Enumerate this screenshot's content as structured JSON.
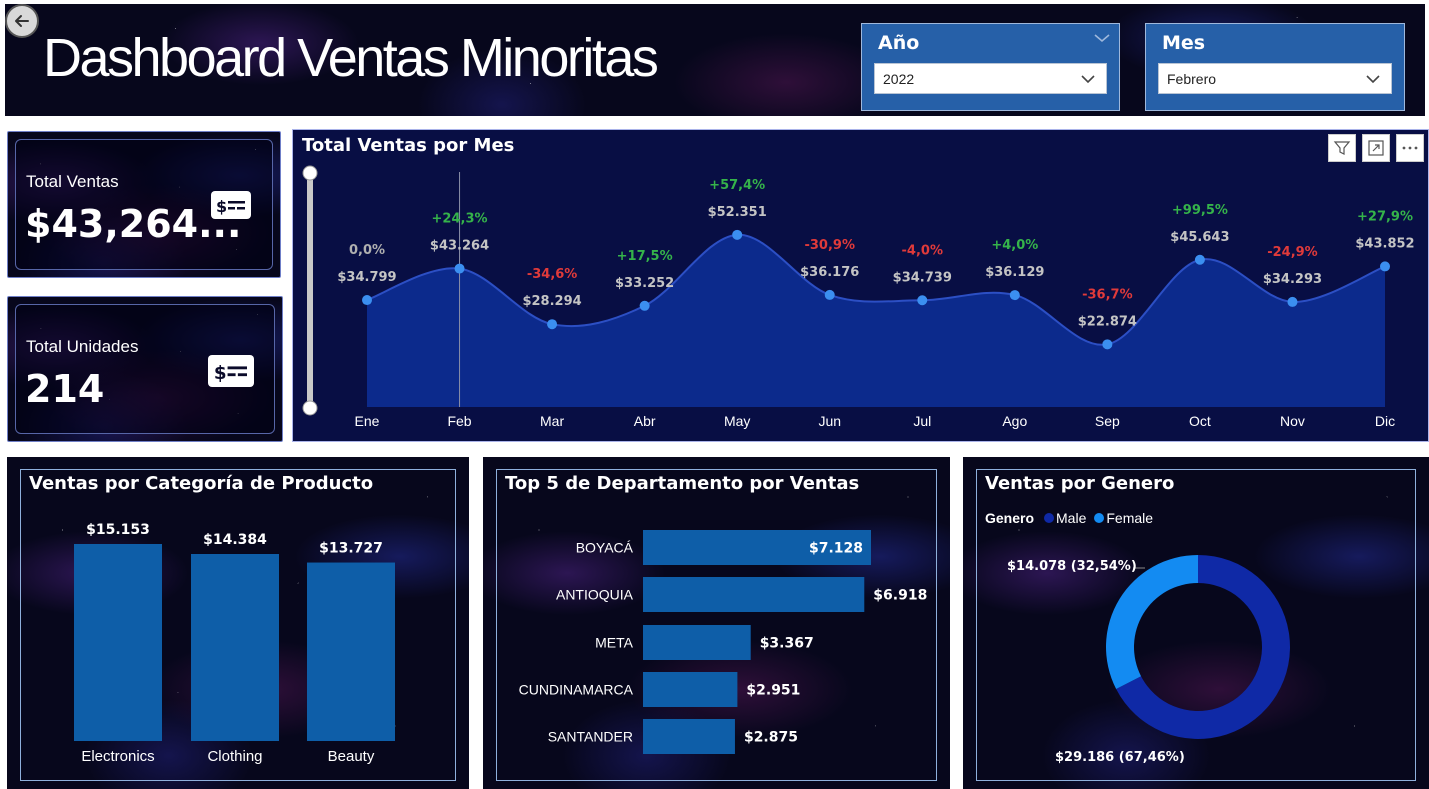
{
  "dashboard": {
    "title": "Dashboard Ventas Minoritas"
  },
  "slicers": [
    {
      "title": "Año",
      "value": "2022"
    },
    {
      "title": "Mes",
      "value": "Febrero"
    }
  ],
  "kpis": {
    "total_ventas": {
      "label": "Total Ventas",
      "value": "$43,264..."
    },
    "total_unidades": {
      "label": "Total Unidades",
      "value": "214"
    }
  },
  "colors": {
    "slicer_bg": "#2660a8",
    "line_fill": "#0c2a8c",
    "line_stroke": "#2c4fc4",
    "point": "#3b8ff0",
    "positive": "#35b34a",
    "negative": "#e03a3a",
    "neutral": "#b0b0b0",
    "bar": "#0e5ea8",
    "male": "#0f29a6",
    "female": "#138bf2"
  },
  "icons": [
    "back-arrow-icon",
    "chevron-down-icon",
    "money-icon",
    "filter-icon",
    "focus-mode-icon",
    "more-options-icon"
  ],
  "chart_data": [
    {
      "type": "area",
      "title": "Total Ventas por Mes",
      "categories": [
        "Ene",
        "Feb",
        "Mar",
        "Abr",
        "May",
        "Jun",
        "Jul",
        "Ago",
        "Sep",
        "Oct",
        "Nov",
        "Dic"
      ],
      "values": [
        34799,
        43264,
        28294,
        33252,
        52351,
        36176,
        34739,
        36129,
        22874,
        45643,
        34293,
        43852
      ],
      "value_labels": [
        "$34.799",
        "$43.264",
        "$28.294",
        "$33.252",
        "$52.351",
        "$36.176",
        "$34.739",
        "$36.129",
        "$22.874",
        "$45.643",
        "$34.293",
        "$43.852"
      ],
      "change_labels": [
        "0,0%",
        "+24,3%",
        "-34,6%",
        "+17,5%",
        "+57,4%",
        "-30,9%",
        "-4,0%",
        "+4,0%",
        "-36,7%",
        "+99,5%",
        "-24,9%",
        "+27,9%"
      ],
      "selected_category": "Feb"
    },
    {
      "type": "bar",
      "title": "Ventas por Categoría de Producto",
      "categories": [
        "Electronics",
        "Clothing",
        "Beauty"
      ],
      "values": [
        15153,
        14384,
        13727
      ],
      "value_labels": [
        "$15.153",
        "$14.384",
        "$13.727"
      ]
    },
    {
      "type": "bar",
      "orientation": "horizontal",
      "title": "Top 5 de Departamento por Ventas",
      "categories": [
        "BOYACÁ",
        "ANTIOQUIA",
        "META",
        "CUNDINAMARCA",
        "SANTANDER"
      ],
      "values": [
        7128,
        6918,
        3367,
        2951,
        2875
      ],
      "value_labels": [
        "$7.128",
        "$6.918",
        "$3.367",
        "$2.951",
        "$2.875"
      ]
    },
    {
      "type": "pie",
      "title": "Ventas por Genero",
      "legend_title": "Genero",
      "legend_placement": "top-left",
      "series": [
        {
          "name": "Male",
          "value": 29186,
          "label": "$29.186 (67,46%)"
        },
        {
          "name": "Female",
          "value": 14078,
          "label": "$14.078 (32,54%)"
        }
      ]
    }
  ]
}
